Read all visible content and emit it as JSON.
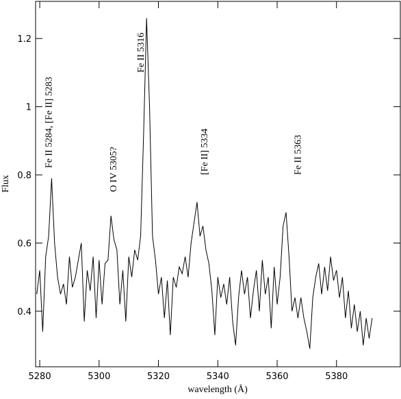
{
  "chart_data": {
    "type": "line",
    "x_label": "wavelength (Å)",
    "y_label": "Flux",
    "color": "#000000",
    "xlim": [
      5278.6,
      5401.5
    ],
    "ylim": [
      0.237,
      1.309
    ],
    "xticks": [
      5280,
      5300,
      5320,
      5340,
      5360,
      5380
    ],
    "yticks": [
      0.4,
      0.6,
      0.8,
      1,
      1.2
    ],
    "x": [
      5279,
      5280,
      5281,
      5282,
      5283,
      5284,
      5285,
      5286,
      5287,
      5288,
      5289,
      5290,
      5291,
      5292,
      5293,
      5294,
      5295,
      5296,
      5297,
      5298,
      5299,
      5300,
      5301,
      5302,
      5303,
      5304,
      5305,
      5306,
      5307,
      5308,
      5309,
      5310,
      5311,
      5312,
      5313,
      5314,
      5315,
      5316,
      5317,
      5318,
      5319,
      5320,
      5321,
      5322,
      5323,
      5324,
      5325,
      5326,
      5327,
      5328,
      5329,
      5330,
      5331,
      5332,
      5333,
      5334,
      5335,
      5336,
      5337,
      5338,
      5339,
      5340,
      5341,
      5342,
      5343,
      5344,
      5345,
      5346,
      5347,
      5348,
      5349,
      5350,
      5351,
      5352,
      5353,
      5354,
      5355,
      5356,
      5357,
      5358,
      5359,
      5360,
      5361,
      5362,
      5363,
      5364,
      5365,
      5366,
      5367,
      5368,
      5369,
      5370,
      5371,
      5372,
      5373,
      5374,
      5375,
      5376,
      5377,
      5378,
      5379,
      5380,
      5381,
      5382,
      5383,
      5384,
      5385,
      5386,
      5387,
      5388,
      5389,
      5390,
      5391,
      5392
    ],
    "values": [
      0.45,
      0.52,
      0.34,
      0.56,
      0.62,
      0.79,
      0.6,
      0.5,
      0.45,
      0.48,
      0.42,
      0.56,
      0.47,
      0.5,
      0.55,
      0.6,
      0.37,
      0.52,
      0.46,
      0.56,
      0.38,
      0.55,
      0.42,
      0.54,
      0.55,
      0.68,
      0.61,
      0.58,
      0.42,
      0.52,
      0.37,
      0.56,
      0.5,
      0.58,
      0.55,
      0.62,
      0.92,
      1.26,
      1.0,
      0.62,
      0.55,
      0.45,
      0.5,
      0.38,
      0.49,
      0.33,
      0.5,
      0.47,
      0.53,
      0.51,
      0.56,
      0.5,
      0.6,
      0.66,
      0.72,
      0.62,
      0.65,
      0.58,
      0.54,
      0.46,
      0.33,
      0.5,
      0.44,
      0.48,
      0.42,
      0.5,
      0.37,
      0.3,
      0.44,
      0.52,
      0.45,
      0.5,
      0.38,
      0.46,
      0.52,
      0.4,
      0.55,
      0.45,
      0.5,
      0.35,
      0.53,
      0.42,
      0.5,
      0.65,
      0.69,
      0.56,
      0.4,
      0.44,
      0.38,
      0.44,
      0.38,
      0.34,
      0.29,
      0.44,
      0.5,
      0.54,
      0.45,
      0.53,
      0.46,
      0.56,
      0.49,
      0.52,
      0.44,
      0.5,
      0.38,
      0.46,
      0.35,
      0.42,
      0.34,
      0.4,
      0.3,
      0.38,
      0.32,
      0.38
    ],
    "annotations": [
      {
        "text": "Fe II 5284, [Fe II] 5283",
        "x": 5284,
        "y": 0.82
      },
      {
        "text": "O IV 5305?",
        "x": 5305.8,
        "y": 0.75
      },
      {
        "text": "Fe II 5316",
        "x": 5315,
        "y": 1.1
      },
      {
        "text": "[Fe II] 5334",
        "x": 5336.5,
        "y": 0.8
      },
      {
        "text": "Fe II 5363",
        "x": 5368,
        "y": 0.8
      }
    ]
  }
}
